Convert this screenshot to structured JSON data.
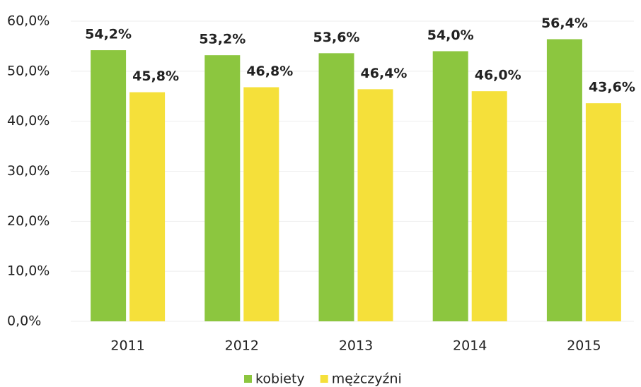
{
  "chart_data": {
    "type": "bar",
    "categories": [
      "2011",
      "2012",
      "2013",
      "2014",
      "2015"
    ],
    "series": [
      {
        "name": "kobiety",
        "color": "#8cc63f",
        "values": [
          54.2,
          53.2,
          53.6,
          54.0,
          56.4
        ],
        "value_labels": [
          "54,2%",
          "53,2%",
          "53,6%",
          "54,0%",
          "56,4%"
        ]
      },
      {
        "name": "mężczyźni",
        "color": "#f5e03a",
        "values": [
          45.8,
          46.8,
          46.4,
          46.0,
          43.6
        ],
        "value_labels": [
          "45,8%",
          "46,8%",
          "46,4%",
          "46,0%",
          "43,6%"
        ]
      }
    ],
    "ylim": [
      0,
      60
    ],
    "yticks": [
      {
        "value": 0,
        "label": "0,0%"
      },
      {
        "value": 10,
        "label": "10,0%"
      },
      {
        "value": 20,
        "label": "20,0%"
      },
      {
        "value": 30,
        "label": "30,0%"
      },
      {
        "value": 40,
        "label": "40,0%"
      },
      {
        "value": 50,
        "label": "50,0%"
      },
      {
        "value": 60,
        "label": "60,0%"
      }
    ],
    "grid": true,
    "legend": "bottom"
  }
}
